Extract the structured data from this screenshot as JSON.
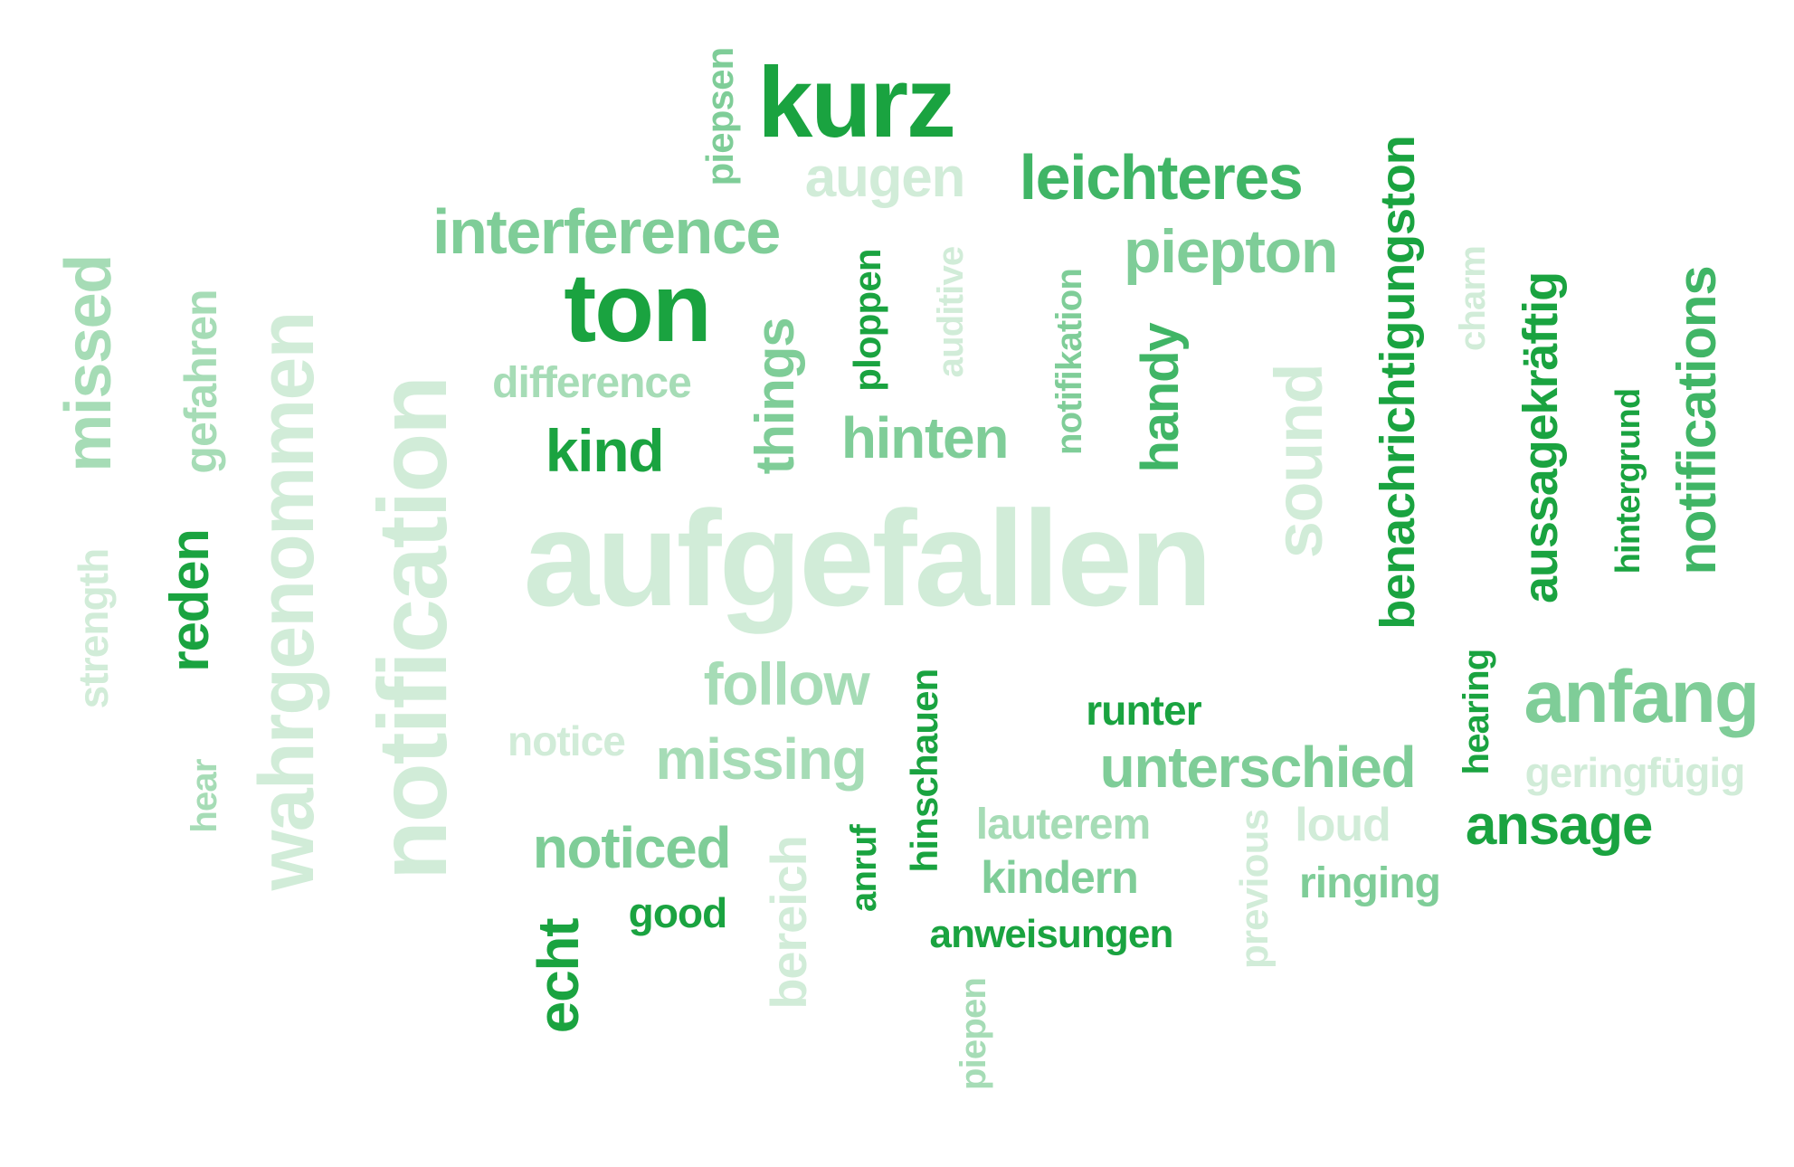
{
  "palette": {
    "dark": "#1aa340",
    "mid": "#40b566",
    "light": "#7fcd98",
    "pale": "#a6dcb6",
    "faint": "#d1ecd8"
  },
  "words": [
    {
      "text": "aufgefallen",
      "tone": "faint"
    },
    {
      "text": "notification",
      "tone": "faint"
    },
    {
      "text": "wahrgenommen",
      "tone": "faint"
    },
    {
      "text": "kurz",
      "tone": "dark"
    },
    {
      "text": "ton",
      "tone": "dark"
    },
    {
      "text": "missed",
      "tone": "pale"
    },
    {
      "text": "sound",
      "tone": "faint"
    },
    {
      "text": "benachrichtigungston",
      "tone": "dark"
    },
    {
      "text": "anfang",
      "tone": "light"
    },
    {
      "text": "aussagekräftig",
      "tone": "dark"
    },
    {
      "text": "notifications",
      "tone": "mid"
    },
    {
      "text": "echt",
      "tone": "dark"
    },
    {
      "text": "reden",
      "tone": "dark"
    },
    {
      "text": "interference",
      "tone": "light"
    },
    {
      "text": "leichteres",
      "tone": "mid"
    },
    {
      "text": "piepton",
      "tone": "light"
    },
    {
      "text": "unterschied",
      "tone": "light"
    },
    {
      "text": "things",
      "tone": "light"
    },
    {
      "text": "handy",
      "tone": "mid"
    },
    {
      "text": "hinten",
      "tone": "light"
    },
    {
      "text": "kind",
      "tone": "dark"
    },
    {
      "text": "follow",
      "tone": "pale"
    },
    {
      "text": "missing",
      "tone": "pale"
    },
    {
      "text": "noticed",
      "tone": "light"
    },
    {
      "text": "augen",
      "tone": "faint"
    },
    {
      "text": "ansage",
      "tone": "dark"
    },
    {
      "text": "gefahren",
      "tone": "pale"
    },
    {
      "text": "bereich",
      "tone": "faint"
    },
    {
      "text": "strength",
      "tone": "faint"
    },
    {
      "text": "difference",
      "tone": "pale"
    },
    {
      "text": "hinschauen",
      "tone": "dark"
    },
    {
      "text": "ploppen",
      "tone": "dark"
    },
    {
      "text": "hintergrund",
      "tone": "dark"
    },
    {
      "text": "hearing",
      "tone": "dark"
    },
    {
      "text": "anweisungen",
      "tone": "dark"
    },
    {
      "text": "piepsen",
      "tone": "light"
    },
    {
      "text": "notifikation",
      "tone": "light"
    },
    {
      "text": "previous",
      "tone": "faint"
    },
    {
      "text": "auditive",
      "tone": "faint"
    },
    {
      "text": "charm",
      "tone": "faint"
    },
    {
      "text": "geringfügig",
      "tone": "faint"
    },
    {
      "text": "runter",
      "tone": "dark"
    },
    {
      "text": "lauterem",
      "tone": "pale"
    },
    {
      "text": "kindern",
      "tone": "light"
    },
    {
      "text": "ringing",
      "tone": "light"
    },
    {
      "text": "loud",
      "tone": "faint"
    },
    {
      "text": "notice",
      "tone": "faint"
    },
    {
      "text": "good",
      "tone": "dark"
    },
    {
      "text": "anruf",
      "tone": "dark"
    },
    {
      "text": "piepen",
      "tone": "pale"
    },
    {
      "text": "hear",
      "tone": "pale"
    }
  ]
}
